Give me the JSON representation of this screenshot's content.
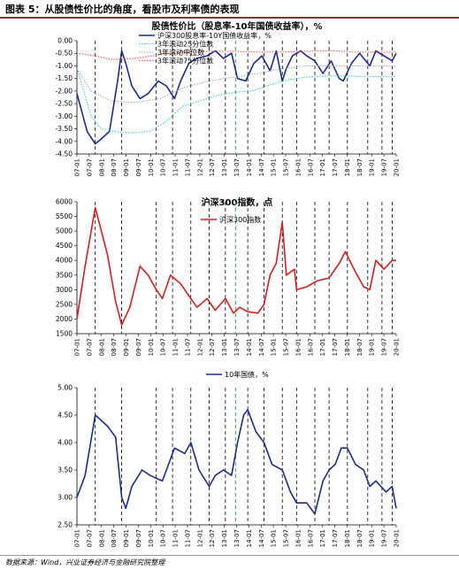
{
  "figure": {
    "title": "图表 5：从股债性价比的角度，看股市及利率债的表现",
    "source": "数据来源：Wind，兴业证券经济与金融研究院整理"
  },
  "time_axis": {
    "tick_labels": [
      "07-01",
      "07-07",
      "08-01",
      "08-07",
      "09-01",
      "09-07",
      "10-01",
      "10-07",
      "11-01",
      "11-07",
      "12-01",
      "12-07",
      "13-01",
      "13-07",
      "14-01",
      "14-07",
      "15-01",
      "15-07",
      "16-01",
      "16-07",
      "17-01",
      "17-07",
      "18-01",
      "18-07",
      "19-01",
      "19-07",
      "20-01"
    ]
  },
  "colors": {
    "navy": "#1c2b8c",
    "red": "#d21e1e",
    "green": "#2ea84a",
    "q25": "#3ec6ea",
    "median": "#a9a9a9",
    "q75": "#ff4f4f"
  },
  "chart_data": [
    {
      "type": "line",
      "title": "股债性价比（股息率-10年国债收益率），%",
      "x_start": "2007-01",
      "x_end": "2020-02",
      "ylim": [
        -4.5,
        0.0
      ],
      "y_ticks": [
        "0.00",
        "-0.50",
        "-1.00",
        "-1.50",
        "-2.00",
        "-2.50",
        "-3.00",
        "-3.50",
        "-4.00",
        "-4.50"
      ],
      "vertical_marker_dates_dashed_black": [
        "2007-10",
        "2008-11",
        "2010-04",
        "2010-12",
        "2011-09",
        "2012-06",
        "2013-02",
        "2014-01",
        "2014-09",
        "2015-06",
        "2016-01",
        "2016-10",
        "2017-05",
        "2018-02",
        "2018-12",
        "2019-07",
        "2019-12"
      ],
      "vertical_marker_dates_dashed_green": [
        "2013-07"
      ],
      "legend": [
        "沪深300股息率-10Y国债收益率，%",
        "3年滚动25分位数",
        "3年滚动中位数",
        "3年滚动75分位数"
      ],
      "series": [
        {
          "name": "沪深300股息率-10Y国债收益率，%",
          "color": "#1c2b8c",
          "x": [
            "2007-01",
            "2007-06",
            "2007-10",
            "2008-01",
            "2008-05",
            "2008-09",
            "2008-11",
            "2009-01",
            "2009-04",
            "2009-08",
            "2009-12",
            "2010-05",
            "2010-09",
            "2011-01",
            "2011-04",
            "2011-08",
            "2011-12",
            "2012-05",
            "2012-09",
            "2013-01",
            "2013-05",
            "2013-08",
            "2013-12",
            "2014-04",
            "2014-08",
            "2014-12",
            "2015-03",
            "2015-06",
            "2015-08",
            "2015-11",
            "2016-03",
            "2016-06",
            "2016-10",
            "2017-02",
            "2017-06",
            "2017-10",
            "2017-12",
            "2018-04",
            "2018-08",
            "2019-01",
            "2019-04",
            "2019-08",
            "2019-12",
            "2020-02"
          ],
          "y": [
            -2.1,
            -3.6,
            -4.1,
            -3.9,
            -3.6,
            -1.6,
            -0.4,
            -0.9,
            -1.8,
            -2.3,
            -2.1,
            -1.6,
            -1.8,
            -2.3,
            -1.6,
            -0.9,
            -0.7,
            -0.6,
            -0.4,
            -0.7,
            -0.5,
            -1.5,
            -1.6,
            -0.9,
            -0.6,
            -1.2,
            -0.4,
            -1.6,
            -1.1,
            -0.6,
            -0.4,
            -0.6,
            -0.8,
            -1.3,
            -0.8,
            -1.5,
            -1.6,
            -0.9,
            -0.5,
            -1.0,
            -0.4,
            -0.6,
            -0.8,
            -0.5
          ]
        },
        {
          "name": "3年滚动25分位数",
          "color": "#3ec6ea",
          "x": [
            "2007-01",
            "2007-08",
            "2008-01",
            "2008-11",
            "2009-06",
            "2010-01",
            "2010-09",
            "2011-05",
            "2012-01",
            "2012-09",
            "2013-06",
            "2014-03",
            "2014-12",
            "2015-09",
            "2016-06",
            "2017-03",
            "2018-01",
            "2018-09",
            "2019-06",
            "2020-02"
          ],
          "y": [
            -1.1,
            -3.0,
            -3.5,
            -3.65,
            -3.65,
            -3.6,
            -3.2,
            -2.6,
            -2.4,
            -2.2,
            -2.05,
            -2.0,
            -1.75,
            -1.55,
            -1.45,
            -1.4,
            -1.4,
            -1.42,
            -1.42,
            -1.42
          ]
        },
        {
          "name": "3年滚动中位数",
          "color": "#a9a9a9",
          "x": [
            "2007-01",
            "2007-08",
            "2008-06",
            "2009-06",
            "2010-06",
            "2011-06",
            "2012-06",
            "2013-06",
            "2014-06",
            "2015-06",
            "2016-06",
            "2017-06",
            "2018-06",
            "2019-06",
            "2020-02"
          ],
          "y": [
            -1.1,
            -2.0,
            -2.4,
            -2.45,
            -2.3,
            -1.85,
            -1.6,
            -1.45,
            -1.3,
            -1.1,
            -1.0,
            -1.0,
            -1.0,
            -1.0,
            -1.0
          ]
        },
        {
          "name": "3年滚动75分位数",
          "color": "#ff4f4f",
          "x": [
            "2007-01",
            "2007-10",
            "2008-06",
            "2009-06",
            "2010-06",
            "2011-06",
            "2012-06",
            "2013-06",
            "2014-06",
            "2015-06",
            "2016-06",
            "2017-06",
            "2018-06",
            "2019-06",
            "2020-02"
          ],
          "y": [
            -0.5,
            -0.6,
            -0.75,
            -0.7,
            -0.55,
            -0.45,
            -0.42,
            -0.42,
            -0.45,
            -0.45,
            -0.42,
            -0.4,
            -0.45,
            -0.45,
            -0.45
          ]
        }
      ]
    },
    {
      "type": "line",
      "title": "沪深300指数，点",
      "x_start": "2007-01",
      "x_end": "2020-02",
      "ylim": [
        1500,
        6000
      ],
      "y_ticks": [
        "6000",
        "5500",
        "5000",
        "4500",
        "4000",
        "3500",
        "3000",
        "2500",
        "2000",
        "1500"
      ],
      "legend": [
        "沪深300指数"
      ],
      "series": [
        {
          "name": "沪深300指数",
          "color": "#d21e1e",
          "x": [
            "2007-01",
            "2007-05",
            "2007-10",
            "2008-01",
            "2008-04",
            "2008-08",
            "2008-11",
            "2009-03",
            "2009-08",
            "2009-12",
            "2010-04",
            "2010-07",
            "2010-11",
            "2011-04",
            "2011-09",
            "2011-12",
            "2012-05",
            "2012-09",
            "2013-02",
            "2013-06",
            "2013-09",
            "2014-01",
            "2014-06",
            "2014-09",
            "2014-12",
            "2015-03",
            "2015-06",
            "2015-08",
            "2015-12",
            "2016-01",
            "2016-06",
            "2016-11",
            "2017-05",
            "2017-10",
            "2018-01",
            "2018-06",
            "2018-10",
            "2019-01",
            "2019-04",
            "2019-08",
            "2019-12",
            "2020-02"
          ],
          "y": [
            2000,
            3800,
            5800,
            5000,
            4200,
            2600,
            1800,
            2400,
            3800,
            3500,
            3000,
            2700,
            3500,
            3200,
            2700,
            2400,
            2700,
            2300,
            2700,
            2200,
            2400,
            2250,
            2200,
            2500,
            3500,
            3900,
            5300,
            3500,
            3700,
            3000,
            3100,
            3300,
            3400,
            3900,
            4300,
            3600,
            3100,
            3000,
            4000,
            3700,
            4000,
            4000
          ]
        }
      ]
    },
    {
      "type": "line",
      "title": "",
      "x_start": "2007-01",
      "x_end": "2020-02",
      "ylim": [
        2.5,
        5.0
      ],
      "y_ticks": [
        "5.00",
        "4.50",
        "4.00",
        "3.50",
        "3.00",
        "2.50"
      ],
      "legend": [
        "10年国债，%"
      ],
      "series": [
        {
          "name": "10年国债，%",
          "color": "#1c2b8c",
          "x": [
            "2007-01",
            "2007-05",
            "2007-10",
            "2008-01",
            "2008-04",
            "2008-08",
            "2008-11",
            "2009-01",
            "2009-04",
            "2009-09",
            "2010-01",
            "2010-07",
            "2011-01",
            "2011-06",
            "2011-09",
            "2012-01",
            "2012-06",
            "2012-09",
            "2013-01",
            "2013-05",
            "2013-08",
            "2013-11",
            "2014-01",
            "2014-05",
            "2014-09",
            "2015-01",
            "2015-06",
            "2015-10",
            "2016-01",
            "2016-06",
            "2016-10",
            "2017-02",
            "2017-05",
            "2017-08",
            "2017-11",
            "2018-02",
            "2018-06",
            "2018-10",
            "2019-01",
            "2019-04",
            "2019-09",
            "2019-12",
            "2020-02"
          ],
          "y": [
            3.0,
            3.4,
            4.5,
            4.4,
            4.3,
            4.1,
            3.0,
            2.8,
            3.2,
            3.5,
            3.4,
            3.3,
            3.9,
            3.8,
            4.0,
            3.5,
            3.2,
            3.4,
            3.5,
            3.4,
            4.0,
            4.5,
            4.6,
            4.2,
            4.0,
            3.6,
            3.5,
            3.1,
            2.9,
            2.9,
            2.7,
            3.3,
            3.5,
            3.6,
            3.9,
            3.9,
            3.6,
            3.5,
            3.2,
            3.3,
            3.1,
            3.2,
            2.8
          ]
        }
      ]
    }
  ]
}
